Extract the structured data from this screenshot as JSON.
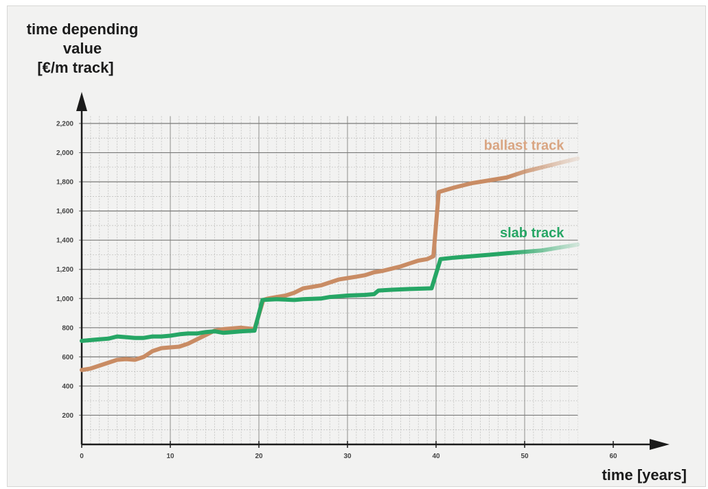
{
  "chart_data": {
    "type": "line",
    "ylabel_lines": [
      "time depending",
      "value",
      "[€/m track]"
    ],
    "xlabel": "time [years]",
    "xlim": [
      0,
      66
    ],
    "ylim": [
      0,
      2300
    ],
    "x_ticks": [
      0,
      10,
      20,
      30,
      40,
      50,
      60
    ],
    "y_ticks": [
      200,
      400,
      600,
      800,
      1000,
      1200,
      1400,
      1600,
      1800,
      2000,
      2200
    ],
    "y_tick_labels": [
      "200",
      "400",
      "600",
      "800",
      "1,000",
      "1,200",
      "1,400",
      "1,600",
      "1,800",
      "2,000",
      "2,200"
    ],
    "grid": true,
    "series": [
      {
        "name": "ballast track",
        "color": "#c98c64",
        "points": [
          [
            0,
            510
          ],
          [
            1,
            520
          ],
          [
            2,
            540
          ],
          [
            3,
            560
          ],
          [
            4,
            580
          ],
          [
            5,
            585
          ],
          [
            6,
            580
          ],
          [
            7,
            600
          ],
          [
            8,
            640
          ],
          [
            9,
            660
          ],
          [
            10,
            665
          ],
          [
            11,
            670
          ],
          [
            12,
            690
          ],
          [
            13,
            720
          ],
          [
            14,
            750
          ],
          [
            15,
            780
          ],
          [
            16,
            790
          ],
          [
            17,
            795
          ],
          [
            18,
            800
          ],
          [
            19.5,
            790
          ],
          [
            20.5,
            990
          ],
          [
            21,
            1000
          ],
          [
            22,
            1010
          ],
          [
            23,
            1020
          ],
          [
            24,
            1040
          ],
          [
            25,
            1070
          ],
          [
            26,
            1080
          ],
          [
            27,
            1090
          ],
          [
            28,
            1110
          ],
          [
            29,
            1130
          ],
          [
            30,
            1140
          ],
          [
            31,
            1150
          ],
          [
            32,
            1160
          ],
          [
            33,
            1180
          ],
          [
            34,
            1190
          ],
          [
            35,
            1205
          ],
          [
            36,
            1220
          ],
          [
            37,
            1240
          ],
          [
            38,
            1260
          ],
          [
            39,
            1270
          ],
          [
            39.7,
            1290
          ],
          [
            40.3,
            1730
          ],
          [
            42,
            1760
          ],
          [
            44,
            1790
          ],
          [
            46,
            1810
          ],
          [
            48,
            1830
          ],
          [
            50,
            1870
          ],
          [
            52,
            1900
          ],
          [
            54,
            1930
          ],
          [
            56,
            1960
          ]
        ]
      },
      {
        "name": "slab track",
        "color": "#26a665",
        "points": [
          [
            0,
            710
          ],
          [
            2,
            720
          ],
          [
            3,
            725
          ],
          [
            4,
            740
          ],
          [
            5,
            735
          ],
          [
            6,
            730
          ],
          [
            7,
            730
          ],
          [
            8,
            740
          ],
          [
            9,
            740
          ],
          [
            10,
            745
          ],
          [
            11,
            755
          ],
          [
            12,
            760
          ],
          [
            13,
            760
          ],
          [
            14,
            770
          ],
          [
            15,
            775
          ],
          [
            16,
            765
          ],
          [
            17,
            770
          ],
          [
            18,
            775
          ],
          [
            19.5,
            780
          ],
          [
            20.4,
            990
          ],
          [
            22,
            995
          ],
          [
            24,
            990
          ],
          [
            25,
            995
          ],
          [
            27,
            1000
          ],
          [
            28,
            1010
          ],
          [
            30,
            1020
          ],
          [
            32,
            1025
          ],
          [
            33,
            1030
          ],
          [
            33.5,
            1055
          ],
          [
            35,
            1060
          ],
          [
            37,
            1065
          ],
          [
            39.5,
            1070
          ],
          [
            40.5,
            1270
          ],
          [
            42,
            1280
          ],
          [
            44,
            1290
          ],
          [
            46,
            1300
          ],
          [
            48,
            1310
          ],
          [
            50,
            1320
          ],
          [
            52,
            1330
          ],
          [
            54,
            1350
          ],
          [
            56,
            1370
          ]
        ]
      }
    ]
  }
}
